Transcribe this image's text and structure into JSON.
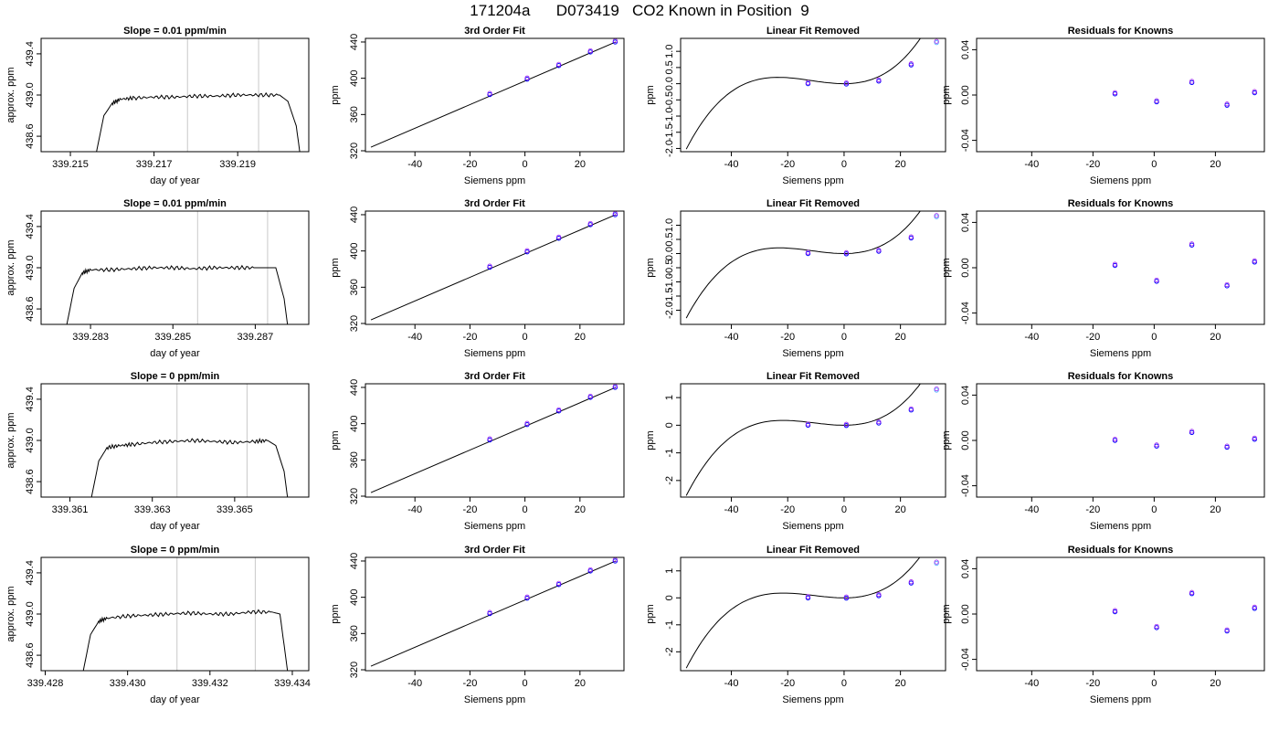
{
  "title": "171204a      D073419   CO2 Known in Position  9",
  "colors": {
    "trace": "#000000",
    "marker_line": "#c8c8c8",
    "point": "#0000ff",
    "point_alt": "#a020f0",
    "point_hi": "#5ab4ff"
  },
  "chart_data": [
    {
      "type": "line",
      "row": 1,
      "col": 1,
      "title": "Slope =  0.01  ppm/min",
      "xlabel": "day of year",
      "ylabel": "approx. ppm",
      "xlim": [
        339.2143,
        339.2207
      ],
      "ylim": [
        438.45,
        439.55
      ],
      "xticks": [
        339.215,
        339.217,
        339.219
      ],
      "xtick_labels": [
        "339.215",
        "339.217",
        "339.219"
      ],
      "yticks": [
        438.6,
        439.0,
        439.4
      ],
      "ytick_labels": [
        "438.6",
        "439.0",
        "439.4"
      ],
      "markers": [
        339.2178,
        339.2195
      ],
      "x": [
        339.2156,
        339.2158,
        339.216,
        339.2162,
        339.2165,
        339.217,
        339.2175,
        339.218,
        339.2185,
        339.219,
        339.2195,
        339.22,
        339.2202,
        339.2204,
        339.2205
      ],
      "y": [
        438.4,
        438.8,
        438.92,
        438.96,
        438.97,
        438.98,
        438.98,
        438.99,
        438.99,
        439.0,
        439.0,
        439.0,
        438.94,
        438.7,
        438.4
      ]
    },
    {
      "type": "scatter",
      "row": 1,
      "col": 2,
      "title": "3rd Order Fit",
      "xlabel": "Siemens ppm",
      "ylabel": "ppm",
      "xlim": [
        -58,
        36
      ],
      "ylim": [
        319,
        444
      ],
      "xticks": [
        -40,
        -20,
        0,
        20
      ],
      "xtick_labels": [
        "-40",
        "-20",
        "0",
        "20"
      ],
      "yticks": [
        320,
        360,
        400,
        440
      ],
      "ytick_labels": [
        "320",
        "360",
        "400",
        "440"
      ],
      "fit_x": [
        -56,
        33
      ],
      "fit_y": [
        324,
        440
      ],
      "points": [
        {
          "x": -12.8,
          "y": 382
        },
        {
          "x": 0.8,
          "y": 399
        },
        {
          "x": 12.3,
          "y": 414
        },
        {
          "x": 23.8,
          "y": 429
        },
        {
          "x": 32.8,
          "y": 440
        }
      ]
    },
    {
      "type": "scatter",
      "row": 1,
      "col": 3,
      "title": "Linear Fit Removed",
      "xlabel": "Siemens ppm",
      "ylabel": "ppm",
      "xlim": [
        -58,
        36
      ],
      "ylim": [
        -2.1,
        1.4
      ],
      "xticks": [
        -40,
        -20,
        0,
        20
      ],
      "xtick_labels": [
        "-40",
        "-20",
        "0",
        "20"
      ],
      "yticks": [
        -2.0,
        -1.5,
        -1.0,
        -0.5,
        0.0,
        0.5,
        1.0
      ],
      "ytick_labels": [
        "-2.0",
        "-1.5",
        "-1.0",
        "-0.5",
        "0.0",
        "0.5",
        "1.0"
      ],
      "cubic": {
        "x0": 0,
        "y0": 0,
        "a": 3.08e-05,
        "b": 0.00108,
        "c": 0.0
      },
      "curve_x": [
        -56,
        33
      ],
      "points": [
        {
          "x": -12.8,
          "y": 0.0
        },
        {
          "x": 0.8,
          "y": -0.01
        },
        {
          "x": 12.3,
          "y": 0.08
        },
        {
          "x": 23.8,
          "y": 0.58
        },
        {
          "x": 32.8,
          "y": 1.27
        }
      ]
    },
    {
      "type": "scatter",
      "row": 1,
      "col": 4,
      "title": "Residuals for Knowns",
      "xlabel": "Siemens ppm",
      "ylabel": "ppm",
      "xlim": [
        -58,
        36
      ],
      "ylim": [
        -0.05,
        0.05
      ],
      "xticks": [
        -40,
        -20,
        0,
        20
      ],
      "xtick_labels": [
        "-40",
        "-20",
        "0",
        "20"
      ],
      "yticks": [
        -0.04,
        0.0,
        0.04
      ],
      "ytick_labels": [
        "-0.04",
        "0.00",
        "0.04"
      ],
      "points": [
        {
          "x": -12.8,
          "y": 0.001
        },
        {
          "x": 0.8,
          "y": -0.006
        },
        {
          "x": 12.3,
          "y": 0.011
        },
        {
          "x": 23.8,
          "y": -0.009
        },
        {
          "x": 32.8,
          "y": 0.002
        }
      ]
    },
    {
      "type": "line",
      "row": 2,
      "col": 1,
      "title": "Slope =  0.01  ppm/min",
      "xlabel": "day of year",
      "ylabel": "approx. ppm",
      "xlim": [
        339.2818,
        339.2883
      ],
      "ylim": [
        438.45,
        439.55
      ],
      "xticks": [
        339.283,
        339.285,
        339.287
      ],
      "xtick_labels": [
        "339.283",
        "339.285",
        "339.287"
      ],
      "markers": [
        339.2856,
        339.2873
      ],
      "yticks": [
        438.6,
        439.0,
        439.4
      ],
      "ytick_labels": [
        "438.6",
        "439.0",
        "439.4"
      ],
      "x": [
        339.2824,
        339.2826,
        339.2828,
        339.283,
        339.2835,
        339.284,
        339.2845,
        339.285,
        339.2855,
        339.286,
        339.2865,
        339.287,
        339.2875,
        339.2877,
        339.2878
      ],
      "y": [
        438.4,
        438.8,
        438.95,
        438.98,
        438.98,
        438.99,
        439.0,
        439.0,
        438.99,
        439.0,
        439.0,
        439.0,
        439.0,
        438.7,
        438.4
      ]
    },
    {
      "type": "scatter",
      "row": 2,
      "col": 2,
      "title": "3rd Order Fit",
      "xlabel": "Siemens ppm",
      "ylabel": "ppm",
      "xlim": [
        -58,
        36
      ],
      "ylim": [
        319,
        444
      ],
      "xticks": [
        -40,
        -20,
        0,
        20
      ],
      "xtick_labels": [
        "-40",
        "-20",
        "0",
        "20"
      ],
      "yticks": [
        320,
        360,
        400,
        440
      ],
      "ytick_labels": [
        "320",
        "360",
        "400",
        "440"
      ],
      "fit_x": [
        -56,
        33
      ],
      "fit_y": [
        324,
        440
      ],
      "points": [
        {
          "x": -12.8,
          "y": 382
        },
        {
          "x": 0.8,
          "y": 399
        },
        {
          "x": 12.3,
          "y": 414
        },
        {
          "x": 23.8,
          "y": 429
        },
        {
          "x": 32.8,
          "y": 440
        }
      ]
    },
    {
      "type": "scatter",
      "row": 2,
      "col": 3,
      "title": "Linear Fit Removed",
      "xlabel": "Siemens ppm",
      "ylabel": "ppm",
      "xlim": [
        -58,
        36
      ],
      "ylim": [
        -2.5,
        1.5
      ],
      "xticks": [
        -40,
        -20,
        0,
        20
      ],
      "xtick_labels": [
        "-40",
        "-20",
        "0",
        "20"
      ],
      "yticks": [
        -2.0,
        -1.5,
        -1.0,
        -0.5,
        0.0,
        0.5,
        1.0
      ],
      "ytick_labels": [
        "-2.0",
        "-1.5",
        "-1.0",
        "-0.5",
        "0.0",
        "0.5",
        "1.0"
      ],
      "cubic": {
        "x0": 0,
        "y0": 0,
        "a": 3.35e-05,
        "b": 0.00115,
        "c": 0.0
      },
      "curve_x": [
        -56,
        33
      ],
      "points": [
        {
          "x": -12.8,
          "y": 0.0
        },
        {
          "x": 0.8,
          "y": -0.01
        },
        {
          "x": 12.3,
          "y": 0.08
        },
        {
          "x": 23.8,
          "y": 0.55
        },
        {
          "x": 32.8,
          "y": 1.3
        }
      ]
    },
    {
      "type": "scatter",
      "row": 2,
      "col": 4,
      "title": "Residuals for Knowns",
      "xlabel": "Siemens ppm",
      "ylabel": "ppm",
      "xlim": [
        -58,
        36
      ],
      "ylim": [
        -0.05,
        0.05
      ],
      "xticks": [
        -40,
        -20,
        0,
        20
      ],
      "xtick_labels": [
        "-40",
        "-20",
        "0",
        "20"
      ],
      "yticks": [
        -0.04,
        0.0,
        0.04
      ],
      "ytick_labels": [
        "-0.04",
        "0.00",
        "0.04"
      ],
      "points": [
        {
          "x": -12.8,
          "y": 0.002
        },
        {
          "x": 0.8,
          "y": -0.012
        },
        {
          "x": 12.3,
          "y": 0.02
        },
        {
          "x": 23.8,
          "y": -0.016
        },
        {
          "x": 32.8,
          "y": 0.005
        }
      ]
    },
    {
      "type": "line",
      "row": 3,
      "col": 1,
      "title": "Slope =  0  ppm/min",
      "xlabel": "day of year",
      "ylabel": "approx. ppm",
      "xlim": [
        339.3603,
        339.3668
      ],
      "ylim": [
        438.45,
        439.55
      ],
      "xticks": [
        339.361,
        339.363,
        339.365
      ],
      "xtick_labels": [
        "339.361",
        "339.363",
        "339.365"
      ],
      "markers": [
        339.3636,
        339.3653
      ],
      "yticks": [
        438.6,
        439.0,
        439.4
      ],
      "ytick_labels": [
        "438.6",
        "439.0",
        "439.4"
      ],
      "x": [
        339.3615,
        339.3617,
        339.3619,
        339.3622,
        339.3625,
        339.363,
        339.3635,
        339.364,
        339.3645,
        339.365,
        339.3655,
        339.3658,
        339.366,
        339.3662,
        339.3663
      ],
      "y": [
        438.4,
        438.8,
        438.93,
        438.95,
        438.96,
        438.98,
        438.99,
        439.0,
        438.99,
        438.98,
        438.99,
        439.0,
        438.95,
        438.7,
        438.4
      ]
    },
    {
      "type": "scatter",
      "row": 3,
      "col": 2,
      "title": "3rd Order Fit",
      "xlabel": "Siemens ppm",
      "ylabel": "ppm",
      "xlim": [
        -58,
        36
      ],
      "ylim": [
        319,
        444
      ],
      "xticks": [
        -40,
        -20,
        0,
        20
      ],
      "xtick_labels": [
        "-40",
        "-20",
        "0",
        "20"
      ],
      "yticks": [
        320,
        360,
        400,
        440
      ],
      "ytick_labels": [
        "320",
        "360",
        "400",
        "440"
      ],
      "fit_x": [
        -56,
        33
      ],
      "fit_y": [
        324,
        440
      ],
      "points": [
        {
          "x": -12.8,
          "y": 382
        },
        {
          "x": 0.8,
          "y": 399
        },
        {
          "x": 12.3,
          "y": 414
        },
        {
          "x": 23.8,
          "y": 429
        },
        {
          "x": 32.8,
          "y": 440
        }
      ]
    },
    {
      "type": "scatter",
      "row": 3,
      "col": 3,
      "title": "Linear Fit Removed",
      "xlabel": "Siemens ppm",
      "ylabel": "ppm",
      "xlim": [
        -58,
        36
      ],
      "ylim": [
        -2.6,
        1.5
      ],
      "xticks": [
        -40,
        -20,
        0,
        20
      ],
      "xtick_labels": [
        "-40",
        "-20",
        "0",
        "20"
      ],
      "yticks": [
        -2,
        -1,
        0,
        1
      ],
      "ytick_labels": [
        "-2",
        "-1",
        "0",
        "1"
      ],
      "cubic": {
        "x0": 0,
        "y0": 0,
        "a": 3.45e-05,
        "b": 0.00112,
        "c": 0.0
      },
      "curve_x": [
        -56,
        33
      ],
      "points": [
        {
          "x": -12.8,
          "y": 0.0
        },
        {
          "x": 0.8,
          "y": -0.01
        },
        {
          "x": 12.3,
          "y": 0.08
        },
        {
          "x": 23.8,
          "y": 0.55
        },
        {
          "x": 32.8,
          "y": 1.27
        }
      ]
    },
    {
      "type": "scatter",
      "row": 3,
      "col": 4,
      "title": "Residuals for Knowns",
      "xlabel": "Siemens ppm",
      "ylabel": "ppm",
      "xlim": [
        -58,
        36
      ],
      "ylim": [
        -0.05,
        0.05
      ],
      "xticks": [
        -40,
        -20,
        0,
        20
      ],
      "xtick_labels": [
        "-40",
        "-20",
        "0",
        "20"
      ],
      "yticks": [
        -0.04,
        0.0,
        0.04
      ],
      "ytick_labels": [
        "-0.04",
        "0.00",
        "0.04"
      ],
      "points": [
        {
          "x": -12.8,
          "y": 0.0
        },
        {
          "x": 0.8,
          "y": -0.005
        },
        {
          "x": 12.3,
          "y": 0.007
        },
        {
          "x": 23.8,
          "y": -0.006
        },
        {
          "x": 32.8,
          "y": 0.001
        }
      ]
    },
    {
      "type": "line",
      "row": 4,
      "col": 1,
      "title": "Slope =  0  ppm/min",
      "xlabel": "day of year",
      "ylabel": "approx. ppm",
      "xlim": [
        339.4279,
        339.4344
      ],
      "ylim": [
        438.45,
        439.55
      ],
      "xticks": [
        339.428,
        339.43,
        339.432,
        339.434
      ],
      "xtick_labels": [
        "339.428",
        "339.430",
        "339.432",
        "339.434"
      ],
      "markers": [
        339.4312,
        339.4331
      ],
      "yticks": [
        438.6,
        439.0,
        439.4
      ],
      "ytick_labels": [
        "438.6",
        "439.0",
        "439.4"
      ],
      "x": [
        339.4289,
        339.4291,
        339.4293,
        339.4295,
        339.43,
        339.4305,
        339.431,
        339.4315,
        339.432,
        339.4325,
        339.433,
        339.4335,
        339.4337,
        339.4338,
        339.4339
      ],
      "y": [
        438.4,
        438.8,
        438.93,
        438.96,
        438.98,
        438.99,
        439.0,
        439.01,
        439.0,
        439.0,
        439.02,
        439.02,
        439.0,
        438.7,
        438.4
      ]
    },
    {
      "type": "scatter",
      "row": 4,
      "col": 2,
      "title": "3rd Order Fit",
      "xlabel": "Siemens ppm",
      "ylabel": "ppm",
      "xlim": [
        -58,
        36
      ],
      "ylim": [
        319,
        444
      ],
      "xticks": [
        -40,
        -20,
        0,
        20
      ],
      "xtick_labels": [
        "-40",
        "-20",
        "0",
        "20"
      ],
      "yticks": [
        320,
        360,
        400,
        440
      ],
      "ytick_labels": [
        "320",
        "360",
        "400",
        "440"
      ],
      "fit_x": [
        -56,
        33
      ],
      "fit_y": [
        324,
        440
      ],
      "points": [
        {
          "x": -12.8,
          "y": 382
        },
        {
          "x": 0.8,
          "y": 399
        },
        {
          "x": 12.3,
          "y": 414
        },
        {
          "x": 23.8,
          "y": 429
        },
        {
          "x": 32.8,
          "y": 440
        }
      ]
    },
    {
      "type": "scatter",
      "row": 4,
      "col": 3,
      "title": "Linear Fit Removed",
      "xlabel": "Siemens ppm",
      "ylabel": "ppm",
      "xlim": [
        -58,
        36
      ],
      "ylim": [
        -2.7,
        1.5
      ],
      "xticks": [
        -40,
        -20,
        0,
        20
      ],
      "xtick_labels": [
        "-40",
        "-20",
        "0",
        "20"
      ],
      "yticks": [
        -2,
        -1,
        0,
        1
      ],
      "ytick_labels": [
        "-2",
        "-1",
        "0",
        "1"
      ],
      "cubic": {
        "x0": 0,
        "y0": 0,
        "a": 3.52e-05,
        "b": 0.00114,
        "c": 0.0
      },
      "curve_x": [
        -56,
        33
      ],
      "points": [
        {
          "x": -12.8,
          "y": 0.0
        },
        {
          "x": 0.8,
          "y": -0.01
        },
        {
          "x": 12.3,
          "y": 0.08
        },
        {
          "x": 23.8,
          "y": 0.55
        },
        {
          "x": 32.8,
          "y": 1.28
        }
      ]
    },
    {
      "type": "scatter",
      "row": 4,
      "col": 4,
      "title": "Residuals for Knowns",
      "xlabel": "Siemens ppm",
      "ylabel": "ppm",
      "xlim": [
        -58,
        36
      ],
      "ylim": [
        -0.05,
        0.05
      ],
      "xticks": [
        -40,
        -20,
        0,
        20
      ],
      "xtick_labels": [
        "-40",
        "-20",
        "0",
        "20"
      ],
      "yticks": [
        -0.04,
        0.0,
        0.04
      ],
      "ytick_labels": [
        "-0.04",
        "0.00",
        "0.04"
      ],
      "points": [
        {
          "x": -12.8,
          "y": 0.002
        },
        {
          "x": 0.8,
          "y": -0.012
        },
        {
          "x": 12.3,
          "y": 0.018
        },
        {
          "x": 23.8,
          "y": -0.015
        },
        {
          "x": 32.8,
          "y": 0.005
        }
      ]
    }
  ]
}
